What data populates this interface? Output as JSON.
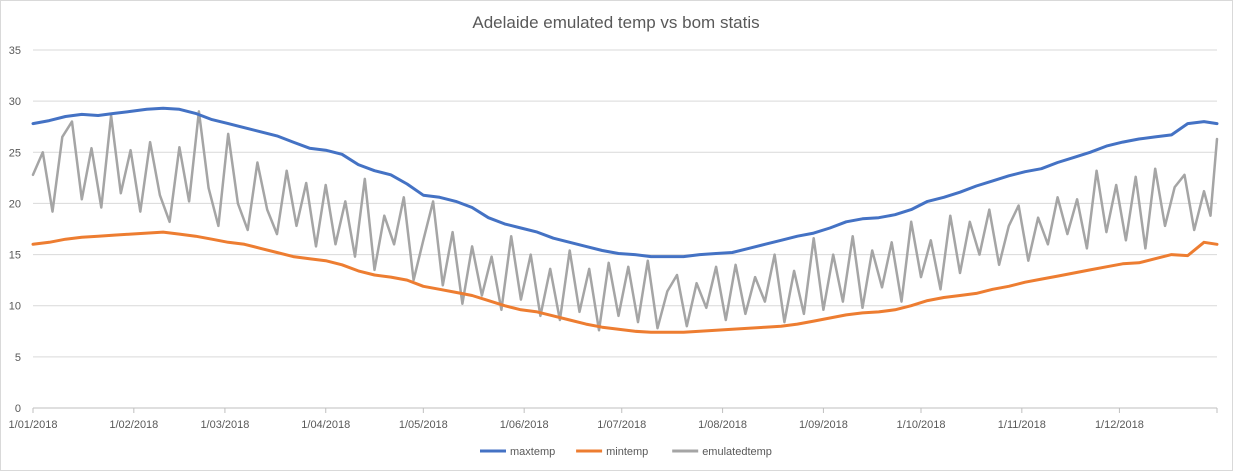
{
  "chart_data": {
    "type": "line",
    "title": "Adelaide emulated temp vs bom statis",
    "x_axis": {
      "type": "date",
      "range": [
        "2018-01-01",
        "2018-12-31"
      ],
      "tick_labels": [
        "1/01/2018",
        "1/02/2018",
        "1/03/2018",
        "1/04/2018",
        "1/05/2018",
        "1/06/2018",
        "1/07/2018",
        "1/08/2018",
        "1/09/2018",
        "1/10/2018",
        "1/11/2018",
        "1/12/2018"
      ],
      "tick_dates": [
        "2018-01-01",
        "2018-02-01",
        "2018-03-01",
        "2018-04-01",
        "2018-05-01",
        "2018-06-01",
        "2018-07-01",
        "2018-08-01",
        "2018-09-01",
        "2018-10-01",
        "2018-11-01",
        "2018-12-01"
      ]
    },
    "y_axis": {
      "range": [
        0,
        35
      ],
      "tick_labels": [
        "0",
        "5",
        "10",
        "15",
        "20",
        "25",
        "30",
        "35"
      ],
      "gridlines": true
    },
    "legend": {
      "position": "bottom-center"
    },
    "series": [
      {
        "name": "maxtemp",
        "color": "#4472c4",
        "x": [
          "2018-01-01",
          "2018-01-06",
          "2018-01-11",
          "2018-01-16",
          "2018-01-21",
          "2018-01-26",
          "2018-01-31",
          "2018-02-05",
          "2018-02-10",
          "2018-02-15",
          "2018-02-20",
          "2018-02-25",
          "2018-03-02",
          "2018-03-07",
          "2018-03-12",
          "2018-03-17",
          "2018-03-22",
          "2018-03-27",
          "2018-04-01",
          "2018-04-06",
          "2018-04-11",
          "2018-04-16",
          "2018-04-21",
          "2018-04-26",
          "2018-05-01",
          "2018-05-06",
          "2018-05-11",
          "2018-05-16",
          "2018-05-21",
          "2018-05-26",
          "2018-05-31",
          "2018-06-05",
          "2018-06-10",
          "2018-06-15",
          "2018-06-20",
          "2018-06-25",
          "2018-06-30",
          "2018-07-05",
          "2018-07-10",
          "2018-07-15",
          "2018-07-20",
          "2018-07-25",
          "2018-07-30",
          "2018-08-04",
          "2018-08-09",
          "2018-08-14",
          "2018-08-19",
          "2018-08-24",
          "2018-08-29",
          "2018-09-03",
          "2018-09-08",
          "2018-09-13",
          "2018-09-18",
          "2018-09-23",
          "2018-09-28",
          "2018-10-03",
          "2018-10-08",
          "2018-10-13",
          "2018-10-18",
          "2018-10-23",
          "2018-10-28",
          "2018-11-02",
          "2018-11-07",
          "2018-11-12",
          "2018-11-17",
          "2018-11-22",
          "2018-11-27",
          "2018-12-02",
          "2018-12-07",
          "2018-12-12",
          "2018-12-17",
          "2018-12-22",
          "2018-12-27",
          "2018-12-31"
        ],
        "y": [
          27.8,
          28.1,
          28.5,
          28.7,
          28.6,
          28.8,
          29.0,
          29.2,
          29.3,
          29.2,
          28.8,
          28.2,
          27.8,
          27.4,
          27.0,
          26.6,
          26.0,
          25.4,
          25.2,
          24.8,
          23.8,
          23.2,
          22.8,
          21.9,
          20.8,
          20.6,
          20.2,
          19.6,
          18.6,
          18.0,
          17.6,
          17.2,
          16.6,
          16.2,
          15.8,
          15.4,
          15.1,
          15.0,
          14.8,
          14.8,
          14.8,
          15.0,
          15.1,
          15.2,
          15.6,
          16.0,
          16.4,
          16.8,
          17.1,
          17.6,
          18.2,
          18.5,
          18.6,
          18.9,
          19.4,
          20.2,
          20.6,
          21.1,
          21.7,
          22.2,
          22.7,
          23.1,
          23.4,
          24.0,
          24.5,
          25.0,
          25.6,
          26.0,
          26.3,
          26.5,
          26.7,
          27.8,
          28.0,
          27.8
        ]
      },
      {
        "name": "mintemp",
        "color": "#ed7d31",
        "x": [
          "2018-01-01",
          "2018-01-06",
          "2018-01-11",
          "2018-01-16",
          "2018-01-21",
          "2018-01-26",
          "2018-01-31",
          "2018-02-05",
          "2018-02-10",
          "2018-02-15",
          "2018-02-20",
          "2018-02-25",
          "2018-03-02",
          "2018-03-07",
          "2018-03-12",
          "2018-03-17",
          "2018-03-22",
          "2018-03-27",
          "2018-04-01",
          "2018-04-06",
          "2018-04-11",
          "2018-04-16",
          "2018-04-21",
          "2018-04-26",
          "2018-05-01",
          "2018-05-06",
          "2018-05-11",
          "2018-05-16",
          "2018-05-21",
          "2018-05-26",
          "2018-05-31",
          "2018-06-05",
          "2018-06-10",
          "2018-06-15",
          "2018-06-20",
          "2018-06-25",
          "2018-06-30",
          "2018-07-05",
          "2018-07-10",
          "2018-07-15",
          "2018-07-20",
          "2018-07-25",
          "2018-07-30",
          "2018-08-04",
          "2018-08-09",
          "2018-08-14",
          "2018-08-19",
          "2018-08-24",
          "2018-08-29",
          "2018-09-03",
          "2018-09-08",
          "2018-09-13",
          "2018-09-18",
          "2018-09-23",
          "2018-09-28",
          "2018-10-03",
          "2018-10-08",
          "2018-10-13",
          "2018-10-18",
          "2018-10-23",
          "2018-10-28",
          "2018-11-02",
          "2018-11-07",
          "2018-11-12",
          "2018-11-17",
          "2018-11-22",
          "2018-11-27",
          "2018-12-02",
          "2018-12-07",
          "2018-12-12",
          "2018-12-17",
          "2018-12-22",
          "2018-12-27",
          "2018-12-31"
        ],
        "y": [
          16.0,
          16.2,
          16.5,
          16.7,
          16.8,
          16.9,
          17.0,
          17.1,
          17.2,
          17.0,
          16.8,
          16.5,
          16.2,
          16.0,
          15.6,
          15.2,
          14.8,
          14.6,
          14.4,
          14.0,
          13.4,
          13.0,
          12.8,
          12.5,
          11.9,
          11.6,
          11.3,
          11.0,
          10.5,
          10.0,
          9.6,
          9.4,
          9.0,
          8.6,
          8.2,
          7.9,
          7.7,
          7.5,
          7.4,
          7.4,
          7.4,
          7.5,
          7.6,
          7.7,
          7.8,
          7.9,
          8.0,
          8.2,
          8.5,
          8.8,
          9.1,
          9.3,
          9.4,
          9.6,
          10.0,
          10.5,
          10.8,
          11.0,
          11.2,
          11.6,
          11.9,
          12.3,
          12.6,
          12.9,
          13.2,
          13.5,
          13.8,
          14.1,
          14.2,
          14.6,
          15.0,
          14.9,
          16.2,
          16.0
        ]
      },
      {
        "name": "emulatedtemp",
        "color": "#a5a5a5",
        "x": [
          "2018-01-01",
          "2018-01-04",
          "2018-01-07",
          "2018-01-10",
          "2018-01-13",
          "2018-01-16",
          "2018-01-19",
          "2018-01-22",
          "2018-01-25",
          "2018-01-28",
          "2018-01-31",
          "2018-02-03",
          "2018-02-06",
          "2018-02-09",
          "2018-02-12",
          "2018-02-15",
          "2018-02-18",
          "2018-02-21",
          "2018-02-24",
          "2018-02-27",
          "2018-03-02",
          "2018-03-05",
          "2018-03-08",
          "2018-03-11",
          "2018-03-14",
          "2018-03-17",
          "2018-03-20",
          "2018-03-23",
          "2018-03-26",
          "2018-03-29",
          "2018-04-01",
          "2018-04-04",
          "2018-04-07",
          "2018-04-10",
          "2018-04-13",
          "2018-04-16",
          "2018-04-19",
          "2018-04-22",
          "2018-04-25",
          "2018-04-28",
          "2018-05-01",
          "2018-05-04",
          "2018-05-07",
          "2018-05-10",
          "2018-05-13",
          "2018-05-16",
          "2018-05-19",
          "2018-05-22",
          "2018-05-25",
          "2018-05-28",
          "2018-05-31",
          "2018-06-03",
          "2018-06-06",
          "2018-06-09",
          "2018-06-12",
          "2018-06-15",
          "2018-06-18",
          "2018-06-21",
          "2018-06-24",
          "2018-06-27",
          "2018-06-30",
          "2018-07-03",
          "2018-07-06",
          "2018-07-09",
          "2018-07-12",
          "2018-07-15",
          "2018-07-18",
          "2018-07-21",
          "2018-07-24",
          "2018-07-27",
          "2018-07-30",
          "2018-08-02",
          "2018-08-05",
          "2018-08-08",
          "2018-08-11",
          "2018-08-14",
          "2018-08-17",
          "2018-08-20",
          "2018-08-23",
          "2018-08-26",
          "2018-08-29",
          "2018-09-01",
          "2018-09-04",
          "2018-09-07",
          "2018-09-10",
          "2018-09-13",
          "2018-09-16",
          "2018-09-19",
          "2018-09-22",
          "2018-09-25",
          "2018-09-28",
          "2018-10-01",
          "2018-10-04",
          "2018-10-07",
          "2018-10-10",
          "2018-10-13",
          "2018-10-16",
          "2018-10-19",
          "2018-10-22",
          "2018-10-25",
          "2018-10-28",
          "2018-10-31",
          "2018-11-03",
          "2018-11-06",
          "2018-11-09",
          "2018-11-12",
          "2018-11-15",
          "2018-11-18",
          "2018-11-21",
          "2018-11-24",
          "2018-11-27",
          "2018-11-30",
          "2018-12-03",
          "2018-12-06",
          "2018-12-09",
          "2018-12-12",
          "2018-12-15",
          "2018-12-18",
          "2018-12-21",
          "2018-12-24",
          "2018-12-27",
          "2018-12-29",
          "2018-12-31"
        ],
        "y": [
          22.8,
          25.0,
          19.2,
          26.5,
          28.0,
          20.4,
          25.4,
          19.6,
          28.6,
          21.0,
          25.2,
          19.2,
          26.0,
          20.8,
          18.2,
          25.5,
          20.2,
          29.0,
          21.5,
          17.8,
          26.8,
          20.0,
          17.4,
          24.0,
          19.4,
          17.0,
          23.2,
          17.8,
          22.0,
          15.8,
          21.8,
          16.0,
          20.2,
          14.8,
          22.4,
          13.5,
          18.8,
          16.0,
          20.6,
          12.5,
          16.4,
          20.2,
          12.0,
          17.2,
          10.2,
          15.8,
          11.0,
          14.8,
          9.6,
          16.8,
          10.6,
          15.0,
          9.0,
          13.6,
          8.6,
          15.4,
          9.4,
          13.6,
          7.6,
          14.2,
          9.0,
          13.8,
          8.4,
          14.4,
          7.8,
          11.4,
          13.0,
          8.0,
          12.2,
          9.8,
          13.8,
          8.6,
          14.0,
          9.2,
          12.8,
          10.4,
          15.0,
          8.4,
          13.4,
          9.2,
          16.6,
          9.6,
          15.0,
          10.4,
          16.8,
          9.8,
          15.4,
          11.8,
          16.2,
          10.4,
          18.2,
          12.8,
          16.4,
          11.6,
          18.8,
          13.2,
          18.2,
          15.0,
          19.4,
          14.0,
          17.8,
          19.8,
          14.4,
          18.6,
          16.0,
          20.6,
          17.0,
          20.4,
          15.6,
          23.2,
          17.2,
          21.8,
          16.4,
          22.6,
          15.6,
          23.4,
          17.8,
          21.6,
          22.8,
          17.4,
          21.2,
          18.8,
          26.3
        ]
      }
    ]
  }
}
